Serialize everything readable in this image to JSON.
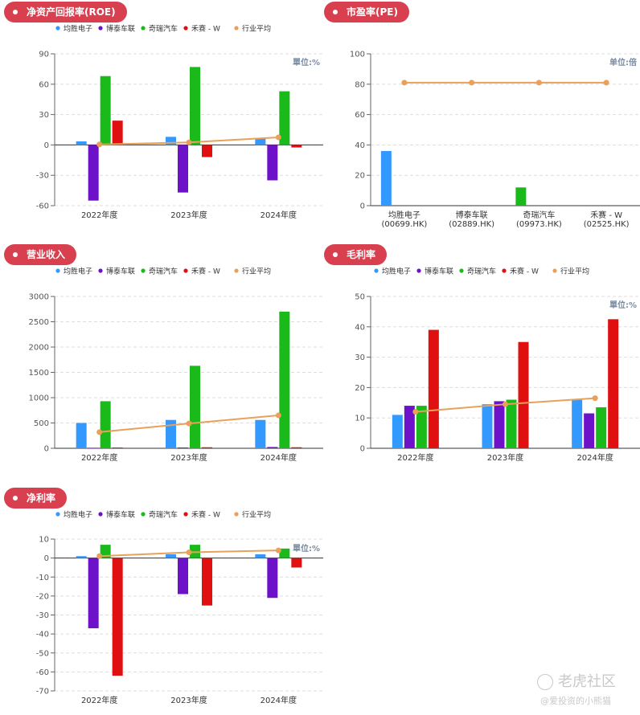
{
  "colors": {
    "pill": "#d9404f",
    "series": [
      "#3399ff",
      "#6e12c9",
      "#1aba1a",
      "#e01010",
      "#e8a05a"
    ],
    "axis": "#666666",
    "grid": "#dddddd"
  },
  "legend": [
    "均胜电子",
    "博泰车联",
    "奇瑞汽车",
    "禾赛 - W",
    "行业平均"
  ],
  "watermark": {
    "brand": "老虎社区",
    "user": "@爱投资的小熊猫"
  },
  "chart_data": [
    {
      "id": "roe",
      "type": "bar",
      "title": "净资产回报率(ROE)",
      "unit": "單位:%",
      "categories": [
        "2022年度",
        "2023年度",
        "2024年度"
      ],
      "ylim": [
        -60,
        90
      ],
      "yticks": [
        -60,
        -30,
        0,
        30,
        60,
        90
      ],
      "series": [
        {
          "name": "均胜电子",
          "values": [
            3.5,
            8,
            6.5
          ]
        },
        {
          "name": "博泰车联",
          "values": [
            -55,
            -47,
            -35
          ]
        },
        {
          "name": "奇瑞汽车",
          "values": [
            68,
            77,
            53
          ]
        },
        {
          "name": "禾赛 - W",
          "values": [
            24,
            -12,
            -2.5
          ]
        }
      ],
      "line": {
        "name": "行业平均",
        "values": [
          0.5,
          2.5,
          7.5
        ]
      },
      "grid": true,
      "legend_position": "top"
    },
    {
      "id": "pe",
      "type": "bar",
      "title": "市盈率(PE)",
      "unit": "单位:倍",
      "categories": [
        "均胜电子\n(00699.HK)",
        "博泰车联\n(02889.HK)",
        "奇瑞汽车\n(09973.HK)",
        "禾赛 - W\n(02525.HK)"
      ],
      "ylim": [
        0,
        100
      ],
      "yticks": [
        0,
        20,
        40,
        60,
        80,
        100
      ],
      "values": [
        36,
        0,
        12,
        0
      ],
      "bar_colors": [
        "#3399ff",
        "#6e12c9",
        "#1aba1a",
        "#e01010"
      ],
      "line": {
        "name": "行业平均",
        "values": [
          81,
          81,
          81,
          81
        ]
      },
      "grid": true
    },
    {
      "id": "revenue",
      "type": "bar",
      "title": "营业收入",
      "unit": "",
      "categories": [
        "2022年度",
        "2023年度",
        "2024年度"
      ],
      "ylim": [
        0,
        3000
      ],
      "yticks": [
        0,
        500,
        1000,
        1500,
        2000,
        2500,
        3000
      ],
      "series": [
        {
          "name": "均胜电子",
          "values": [
            500,
            560,
            560
          ]
        },
        {
          "name": "博泰车联",
          "values": [
            10,
            15,
            25
          ]
        },
        {
          "name": "奇瑞汽车",
          "values": [
            930,
            1630,
            2700
          ]
        },
        {
          "name": "禾赛 - W",
          "values": [
            15,
            20,
            20
          ]
        }
      ],
      "line": {
        "name": "行业平均",
        "values": [
          320,
          490,
          650
        ]
      },
      "grid": true,
      "legend_position": "top"
    },
    {
      "id": "gross_margin",
      "type": "bar",
      "title": "毛利率",
      "unit": "單位:%",
      "categories": [
        "2022年度",
        "2023年度",
        "2024年度"
      ],
      "ylim": [
        0,
        50
      ],
      "yticks": [
        0,
        10,
        20,
        30,
        40,
        50
      ],
      "series": [
        {
          "name": "均胜电子",
          "values": [
            11,
            14.5,
            16
          ]
        },
        {
          "name": "博泰车联",
          "values": [
            14,
            15.5,
            11.5
          ]
        },
        {
          "name": "奇瑞汽车",
          "values": [
            14,
            16,
            13.5
          ]
        },
        {
          "name": "禾赛 - W",
          "values": [
            39,
            35,
            42.5
          ]
        }
      ],
      "line": {
        "name": "行业平均",
        "values": [
          12,
          14.5,
          16.5
        ]
      },
      "grid": true,
      "legend_position": "top"
    },
    {
      "id": "net_margin",
      "type": "bar",
      "title": "净利率",
      "unit": "單位:%",
      "categories": [
        "2022年度",
        "2023年度",
        "2024年度"
      ],
      "ylim": [
        -70,
        10
      ],
      "yticks": [
        -70,
        -60,
        -50,
        -40,
        -30,
        -20,
        -10,
        0,
        10
      ],
      "series": [
        {
          "name": "均胜电子",
          "values": [
            1,
            2,
            2
          ]
        },
        {
          "name": "博泰车联",
          "values": [
            -37,
            -19,
            -21
          ]
        },
        {
          "name": "奇瑞汽车",
          "values": [
            7,
            7,
            5
          ]
        },
        {
          "name": "禾赛 - W",
          "values": [
            -62,
            -25,
            -5
          ]
        }
      ],
      "line": {
        "name": "行业平均",
        "values": [
          1,
          3,
          4
        ]
      },
      "grid": true,
      "legend_position": "top"
    }
  ]
}
